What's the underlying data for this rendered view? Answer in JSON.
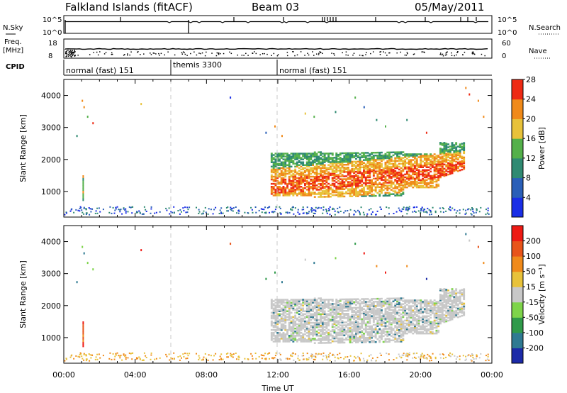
{
  "header": {
    "station": "Falkland Islands (fitACF)",
    "beam": "Beam 03",
    "date": "05/May/2011"
  },
  "nsky_panel": {
    "label": "N.Sky",
    "left_ticks": [
      "10^5",
      "10^0"
    ],
    "right_ticks": [
      "10^5",
      "10^0"
    ],
    "right_label": "N.Search"
  },
  "freq_panel": {
    "label_line1": "Freq.",
    "label_line2": "[MHz]",
    "left_ticks": [
      "18",
      "8"
    ],
    "right_ticks": [
      "60",
      "0"
    ],
    "right_label": "Nave"
  },
  "cpid_panel": {
    "label": "CPID",
    "segments": [
      {
        "text": "normal (fast) 151",
        "start_hour": 0
      },
      {
        "text": "themis 3300",
        "start_hour": 7
      },
      {
        "text": "normal (fast) 151",
        "start_hour": 12
      }
    ]
  },
  "chart_data": [
    {
      "type": "heatmap",
      "name": "power",
      "ylabel": "Slant Range [km]",
      "xlim_hours": [
        0,
        24
      ],
      "ylim": [
        200,
        4500
      ],
      "yticks": [
        1000,
        2000,
        3000,
        4000
      ],
      "dashed_lines_hours": [
        6,
        12
      ],
      "colorbar": {
        "label": "Power [dB]",
        "ticks": [
          "4",
          "8",
          "12",
          "16",
          "20",
          "24",
          "28"
        ],
        "colors": [
          "#1a2ee6",
          "#2a5fb8",
          "#2f8a72",
          "#54b04a",
          "#e8c23a",
          "#f08a1a",
          "#ee2a14"
        ]
      }
    },
    {
      "type": "heatmap",
      "name": "velocity",
      "ylabel": "Slant Range [km]",
      "xlabel": "Time UT",
      "xlim_hours": [
        0,
        24
      ],
      "ylim": [
        200,
        4500
      ],
      "yticks": [
        1000,
        2000,
        3000,
        4000
      ],
      "xticks": [
        "00:00",
        "04:00",
        "08:00",
        "12:00",
        "16:00",
        "20:00",
        "00:00"
      ],
      "dashed_lines_hours": [
        6,
        12
      ],
      "colorbar": {
        "label": "Velocity [m s⁻¹]",
        "ticks": [
          "200",
          "100",
          "50",
          "15",
          "-15",
          "-50",
          "-100",
          "-200"
        ],
        "colors": [
          "#1c2aa8",
          "#2f7a92",
          "#2f9a4a",
          "#7ed44a",
          "#c8c8c8",
          "#e8c23a",
          "#f08a1a",
          "#e8541a",
          "#ee1a14"
        ]
      }
    }
  ]
}
